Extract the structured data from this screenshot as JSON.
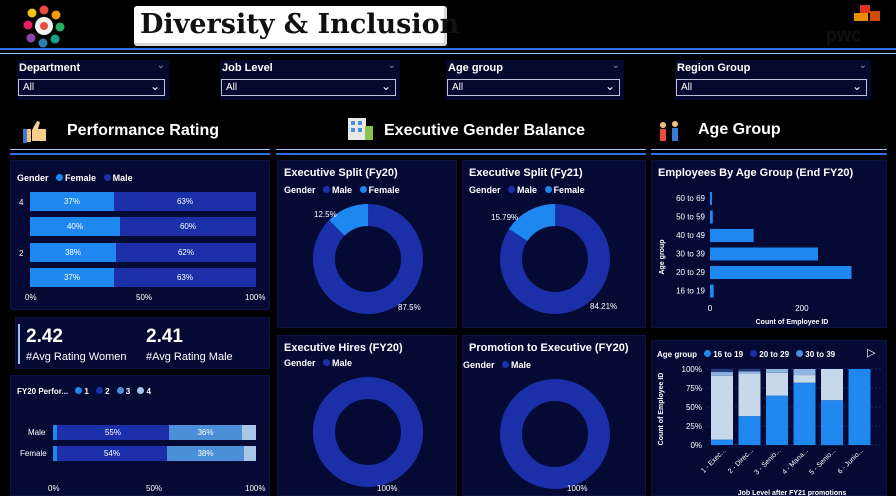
{
  "header": {
    "title": "Diversity & Inclusion",
    "brand": "pwc"
  },
  "colors": {
    "background": "#000000",
    "panel": "#050a34",
    "male": "#1a2fa8",
    "female": "#1e88f0",
    "series3": "#4a8fd8",
    "series4": "#a8c6e8",
    "accent_line": "#2d6fe0"
  },
  "filters": [
    {
      "label": "Department",
      "value": "All"
    },
    {
      "label": "Job Level",
      "value": "All"
    },
    {
      "label": "Age group",
      "value": "All"
    },
    {
      "label": "Region Group",
      "value": "All"
    }
  ],
  "sections": {
    "performance": "Performance Rating",
    "executive": "Executive Gender Balance",
    "age": "Age Group"
  },
  "performance_chart": {
    "legend_title": "Gender",
    "legend": [
      {
        "name": "Female",
        "color": "#1e88f0"
      },
      {
        "name": "Male",
        "color": "#1a2fa8"
      }
    ],
    "y_ticks": [
      "4",
      "2"
    ],
    "x_ticks": [
      "0%",
      "50%",
      "100%"
    ],
    "rows": [
      {
        "female": "37%",
        "male": "63%",
        "f": 37
      },
      {
        "female": "40%",
        "male": "60%",
        "f": 40
      },
      {
        "female": "38%",
        "male": "62%",
        "f": 38
      },
      {
        "female": "37%",
        "male": "63%",
        "f": 37
      }
    ]
  },
  "kpis": [
    {
      "value": "2.42",
      "label": "#Avg Rating Women"
    },
    {
      "value": "2.41",
      "label": "#Avg Rating Male"
    }
  ],
  "fy20_chart": {
    "legend_title": "FY20 Perfor...",
    "legend": [
      "1",
      "2",
      "3",
      "4"
    ],
    "rows": [
      {
        "label": "Male",
        "s1": 2,
        "s2": 55,
        "s3": 36,
        "s4": 7,
        "t2": "55%",
        "t3": "36%"
      },
      {
        "label": "Female",
        "s1": 2,
        "s2": 54,
        "s3": 38,
        "s4": 6,
        "t2": "54%",
        "t3": "38%"
      }
    ],
    "x_ticks": [
      "0%",
      "50%",
      "100%"
    ]
  },
  "exec_split_fy20": {
    "title": "Executive Split (Fy20)",
    "legend_title": "Gender",
    "legend": [
      {
        "name": "Male",
        "color": "#1a2fa8"
      },
      {
        "name": "Female",
        "color": "#1e88f0"
      }
    ],
    "female_pct": 12.5,
    "female_label": "12.5%",
    "male_label": "87.5%"
  },
  "exec_split_fy21": {
    "title": "Executive Split (Fy21)",
    "legend_title": "Gender",
    "legend": [
      {
        "name": "Male",
        "color": "#1a2fa8"
      },
      {
        "name": "Female",
        "color": "#1e88f0"
      }
    ],
    "female_pct": 15.79,
    "female_label": "15.79%",
    "male_label": "84.21%"
  },
  "exec_hires": {
    "title": "Executive Hires (FY20)",
    "legend_title": "Gender",
    "legend": [
      {
        "name": "Male",
        "color": "#1a2fa8"
      }
    ],
    "label": "100%"
  },
  "promotion_exec": {
    "title": "Promotion to Executive (FY20)",
    "legend_title": "Gender",
    "legend": [
      {
        "name": "Male",
        "color": "#1a2fa8"
      }
    ],
    "label": "100%"
  },
  "employees_by_age": {
    "title": "Employees By Age Group (End FY20)",
    "ylabel": "Age group",
    "xlabel": "Count of Employee ID",
    "x_ticks": [
      "0",
      "200"
    ],
    "categories": [
      "60 to 69",
      "50 to 59",
      "40 to 49",
      "30 to 39",
      "20 to 29",
      "16 to 19"
    ],
    "values": [
      4,
      6,
      95,
      235,
      308,
      8
    ],
    "xmax": 370
  },
  "promo_age": {
    "legend_title": "Age group",
    "legend": [
      {
        "name": "16 to 19",
        "color": "#1e88f0"
      },
      {
        "name": "20 to 29",
        "color": "#1a2fa8"
      },
      {
        "name": "30 to 39",
        "color": "#4a8fd8"
      }
    ],
    "ylabel": "Count of Employee ID",
    "xlabel": "Job Level after FY21 promotions",
    "y_ticks": [
      "100%",
      "75%",
      "50%",
      "25%",
      "0%"
    ],
    "categories": [
      "1 - Exec...",
      "2 - Direc...",
      "3 - Senio...",
      "4 - Mana...",
      "5 - Senio...",
      "6 - Junio..."
    ]
  }
}
